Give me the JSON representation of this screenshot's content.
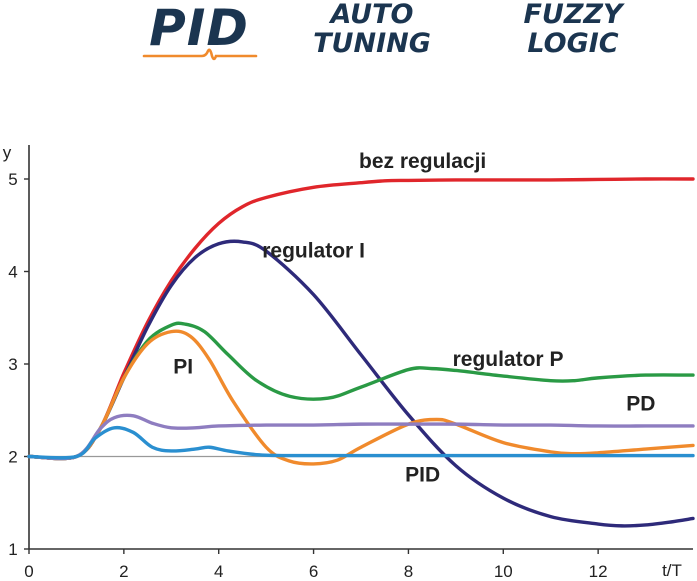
{
  "logos": {
    "pid": "PID",
    "auto_tuning": [
      "AUTO",
      "TUNING"
    ],
    "fuzzy_logic": [
      "FUZZY",
      "LOGIC"
    ],
    "brand_color": "#1b3550",
    "accent_color": "#f08a2c"
  },
  "chart_data": {
    "type": "line",
    "title": "",
    "xlabel": "t/T",
    "ylabel": "y",
    "xlim": [
      0,
      14
    ],
    "ylim": [
      1,
      5.3
    ],
    "xticks": [
      0,
      2,
      4,
      6,
      8,
      10,
      12
    ],
    "yticks": [
      1,
      2,
      3,
      4,
      5
    ],
    "reference_line": {
      "y": 2,
      "color": "#999999"
    },
    "grid": false,
    "legend": "none (inline labels)",
    "series": [
      {
        "name": "bez regulacji",
        "color": "#e0262b",
        "x": [
          0,
          1,
          1.5,
          2,
          2.5,
          3,
          3.5,
          4,
          4.5,
          5,
          6,
          7,
          7.5,
          8,
          9,
          10,
          11,
          12,
          13,
          14
        ],
        "y": [
          2,
          2,
          2.3,
          2.9,
          3.45,
          3.9,
          4.25,
          4.52,
          4.7,
          4.8,
          4.91,
          4.96,
          4.98,
          4.985,
          4.99,
          4.99,
          4.99,
          4.995,
          5,
          5
        ]
      },
      {
        "name": "regulator I",
        "color": "#2e2a7a",
        "x": [
          0,
          1,
          1.5,
          2,
          2.5,
          3,
          3.5,
          4,
          4.5,
          5,
          6,
          7,
          8,
          9,
          10,
          11,
          12,
          12.5,
          13,
          13.5,
          14
        ],
        "y": [
          2,
          2,
          2.3,
          2.85,
          3.4,
          3.85,
          4.15,
          4.3,
          4.32,
          4.22,
          3.75,
          3.1,
          2.45,
          1.9,
          1.55,
          1.35,
          1.27,
          1.25,
          1.26,
          1.29,
          1.33
        ]
      },
      {
        "name": "regulator P",
        "color": "#2a9a45",
        "x": [
          0,
          1,
          1.5,
          2,
          2.5,
          3,
          3.3,
          3.7,
          4.2,
          4.8,
          5.5,
          6.3,
          7,
          8,
          8.5,
          9,
          10,
          11,
          11.5,
          12,
          13,
          14
        ],
        "y": [
          2,
          2,
          2.3,
          2.85,
          3.25,
          3.42,
          3.43,
          3.35,
          3.1,
          2.82,
          2.65,
          2.63,
          2.75,
          2.94,
          2.95,
          2.93,
          2.87,
          2.82,
          2.82,
          2.85,
          2.88,
          2.88
        ]
      },
      {
        "name": "PI",
        "color": "#f08a2c",
        "x": [
          0,
          1,
          1.5,
          2,
          2.5,
          3,
          3.4,
          3.8,
          4.3,
          5,
          5.5,
          6,
          6.5,
          7,
          8,
          8.6,
          9,
          10,
          11,
          11.5,
          12,
          13,
          14
        ],
        "y": [
          2,
          2,
          2.3,
          2.85,
          3.22,
          3.35,
          3.3,
          3.05,
          2.6,
          2.1,
          1.95,
          1.92,
          1.96,
          2.1,
          2.35,
          2.4,
          2.35,
          2.15,
          2.05,
          2.03,
          2.04,
          2.08,
          2.12
        ]
      },
      {
        "name": "PD",
        "color": "#8e7dc0",
        "x": [
          0,
          1,
          1.5,
          1.8,
          2.2,
          2.6,
          3,
          3.5,
          4,
          5,
          6,
          7,
          8,
          9,
          10,
          11,
          12,
          13,
          14
        ],
        "y": [
          2,
          2,
          2.3,
          2.42,
          2.44,
          2.36,
          2.31,
          2.31,
          2.33,
          2.34,
          2.34,
          2.35,
          2.35,
          2.35,
          2.34,
          2.34,
          2.33,
          2.33,
          2.33
        ]
      },
      {
        "name": "PID",
        "color": "#2a8fd0",
        "x": [
          0,
          1,
          1.4,
          1.8,
          2.2,
          2.6,
          3,
          3.5,
          3.8,
          4.2,
          4.8,
          5.5,
          7,
          9,
          11,
          14
        ],
        "y": [
          2,
          2,
          2.2,
          2.31,
          2.26,
          2.1,
          2.06,
          2.08,
          2.1,
          2.06,
          2.02,
          2.01,
          2.01,
          2.01,
          2.01,
          2.01
        ]
      }
    ],
    "annotations": [
      {
        "text": "bez regulacji",
        "x": 8.3,
        "y": 5.12
      },
      {
        "text": "regulator I",
        "x": 6.0,
        "y": 4.15
      },
      {
        "text": "regulator P",
        "x": 10.1,
        "y": 2.98
      },
      {
        "text": "PI",
        "x": 3.25,
        "y": 2.9
      },
      {
        "text": "PD",
        "x": 12.9,
        "y": 2.5
      },
      {
        "text": "PID",
        "x": 8.3,
        "y": 1.73
      }
    ]
  }
}
